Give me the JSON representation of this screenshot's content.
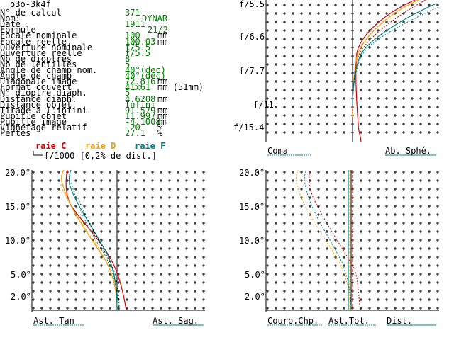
{
  "window_title": "o3o-3k4f",
  "colors": {
    "raie_c": "#d00000",
    "raie_d": "#f0a000",
    "raie_f": "#008080",
    "green": "#007800",
    "grid": "#000000"
  },
  "fields": [
    {
      "label": "N° de calcul",
      "value": "371",
      "extra": ""
    },
    {
      "label": "Nom:",
      "value": "",
      "extra": "DYNAR"
    },
    {
      "label": "Date",
      "value": "1911",
      "extra": ""
    },
    {
      "label": "Formule",
      "value": "",
      "extra": "21/2"
    },
    {
      "label": "Focale nominale",
      "value": "100",
      "extra": "mm"
    },
    {
      "label": "Focale réelle",
      "value": "100.03",
      "extra": "mm"
    },
    {
      "label": "Ouverture nominale",
      "value": "f/5.5",
      "extra": ""
    },
    {
      "label": "Ouverture réelle",
      "value": "f/5.5",
      "extra": ""
    },
    {
      "label": "Nb de dioptres",
      "value": "8",
      "extra": ""
    },
    {
      "label": "Nb de lentilles",
      "value": "5",
      "extra": ""
    },
    {
      "label": "Angle de champ nom.",
      "value": "40°(dec)",
      "extra": ""
    },
    {
      "label": "Angle de champ",
      "value": "40°(dec)",
      "extra": ""
    },
    {
      "label": "Diagonale image",
      "value": "72.816",
      "extra": "mm"
    },
    {
      "label": "Format couvert",
      "value": "41x61",
      "extra": "mm (51mm)"
    },
    {
      "label": "N° dioptre diaph.",
      "value": "5",
      "extra": ""
    },
    {
      "label": "Distance diaph.",
      "value": "4.6208",
      "extra": "mm"
    },
    {
      "label": "Distance objet",
      "value": "Infini",
      "extra": ""
    },
    {
      "label": "Tirage à l'infini",
      "value": "91.579",
      "extra": "mm"
    },
    {
      "label": "Pupille objet",
      "value": "11.997",
      "extra": "mm"
    },
    {
      "label": "Pupille image",
      "value": "-4.1008",
      "extra": "mm"
    },
    {
      "label": "Vignetage relatif",
      "value": "-20",
      "extra": "%"
    },
    {
      "label": "Pertes",
      "value": "27.1",
      "extra": "%"
    }
  ],
  "legend": {
    "c": "raie C",
    "d": "raie D",
    "f": "raie F",
    "scale": "f/1000 [0,2% de dist.]"
  },
  "top_right": {
    "y_labels": [
      "f/5.5",
      "f/6.6",
      "f/7.7",
      "f/11",
      "f/15.4"
    ],
    "bottom_left": "Coma",
    "bottom_right": "Ab. Sphé."
  },
  "bottom_left": {
    "y_labels": [
      "20.0°",
      "15.0°",
      "10.0°",
      "5.0°",
      "2.0°"
    ],
    "bottom_left": "Ast. Tan",
    "bottom_right": "Ast. Sag."
  },
  "bottom_right": {
    "y_labels": [
      "20.0°",
      "15.0°",
      "10.0°",
      "5.0°",
      "2.0°"
    ],
    "labels": [
      "Courb.Chp.",
      "Ast.Tot.",
      "Dist."
    ]
  }
}
